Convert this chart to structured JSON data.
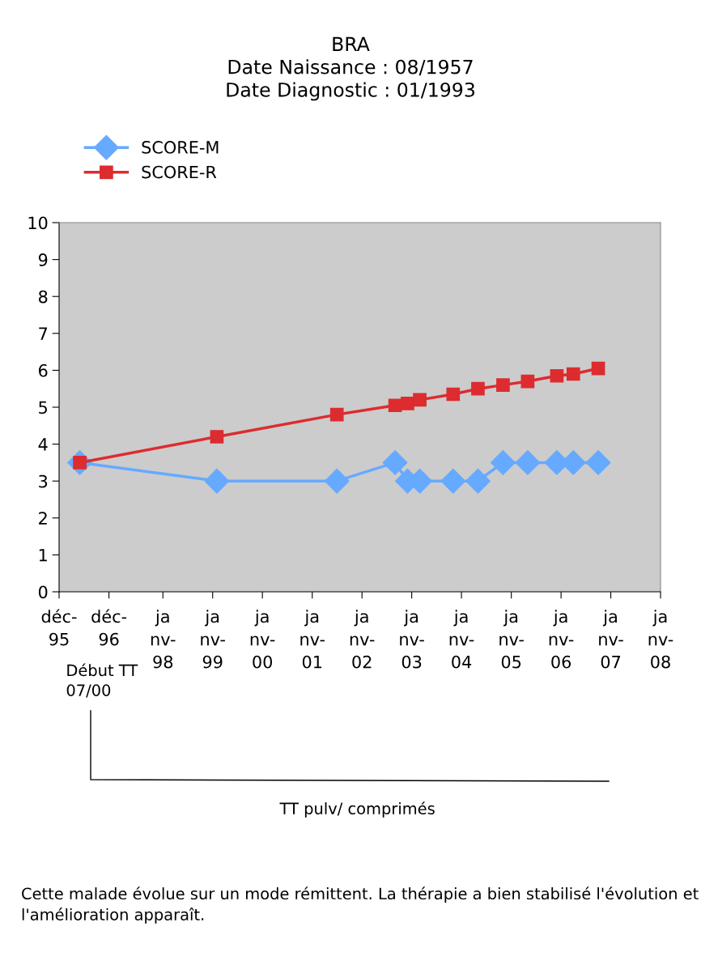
{
  "chart_data": {
    "type": "line",
    "title": "BRA\nDate Naissance : 08/1957\nDate Diagnostic : 01/1993",
    "x": [
      "1996-05",
      "1999-02",
      "2001-07",
      "2002-09",
      "2002-12",
      "2003-03",
      "2003-11",
      "2004-05",
      "2004-11",
      "2005-05",
      "2005-12",
      "2006-04",
      "2006-10"
    ],
    "series": [
      {
        "name": "SCORE-M",
        "color": "#66aaff",
        "marker": "diamond",
        "values": [
          3.5,
          3,
          3,
          3.5,
          3,
          3,
          3,
          3,
          3.5,
          3.5,
          3.5,
          3.5,
          3.5
        ]
      },
      {
        "name": "SCORE-R",
        "color": "#dd2c2f",
        "marker": "square",
        "values": [
          3.5,
          4.2,
          4.8,
          5.05,
          5.1,
          5.2,
          5.35,
          5.5,
          5.6,
          5.7,
          5.85,
          5.9,
          6.05
        ]
      }
    ],
    "xlim": [
      "1995-12",
      "2008-01"
    ],
    "xticks": [
      {
        "value": "1995-12",
        "label": "déc-\n95"
      },
      {
        "value": "1996-12",
        "label": "déc-\n96"
      },
      {
        "value": "1998-01",
        "label": "ja\nnv-\n98"
      },
      {
        "value": "1999-01",
        "label": "ja\nnv-\n99"
      },
      {
        "value": "2000-01",
        "label": "ja\nnv-\n00"
      },
      {
        "value": "2001-01",
        "label": "ja\nnv-\n01"
      },
      {
        "value": "2002-01",
        "label": "ja\nnv-\n02"
      },
      {
        "value": "2003-01",
        "label": "ja\nnv-\n03"
      },
      {
        "value": "2004-01",
        "label": "ja\nnv-\n04"
      },
      {
        "value": "2005-01",
        "label": "ja\nnv-\n05"
      },
      {
        "value": "2006-01",
        "label": "ja\nnv-\n06"
      },
      {
        "value": "2007-01",
        "label": "ja\nnv-\n07"
      },
      {
        "value": "2008-01",
        "label": "ja\nnv-\n08"
      }
    ],
    "ylim": [
      0,
      10
    ],
    "yticks": [
      0,
      1,
      2,
      3,
      4,
      5,
      6,
      7,
      8,
      9,
      10
    ],
    "grid": false,
    "legend": "top left",
    "line_style": "solid",
    "annotations": [
      "Début TT\n07/00",
      "TT pulv/ comprimés",
      "Cette malade évolue sur un mode rémittent. La thérapie a bien stabilisé l'évolution et l'amélioration apparaît."
    ]
  }
}
